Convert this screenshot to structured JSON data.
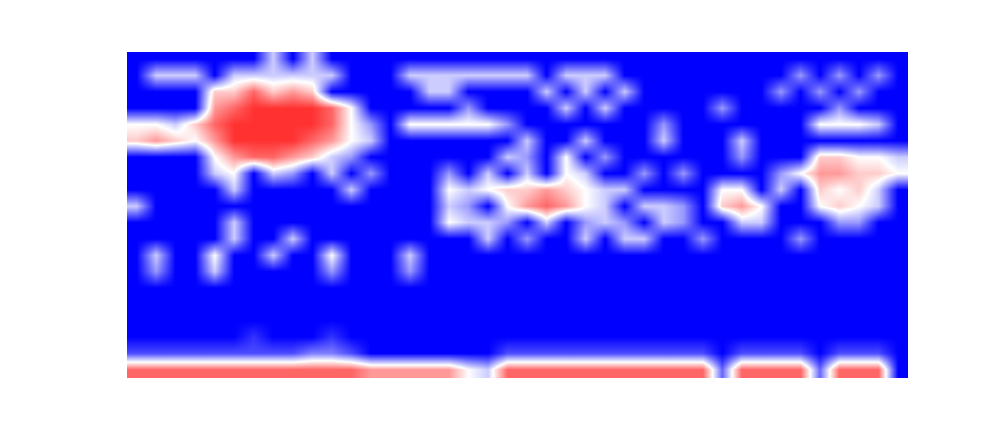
{
  "chart_data": {
    "type": "heatmap",
    "color": "bwr",
    "tick_labels": false,
    "value_range": [
      0,
      1
    ],
    "cells": [
      [
        0,
        0,
        0,
        0,
        0,
        0,
        0,
        0.4,
        0,
        0.4,
        0,
        0,
        0,
        0,
        0,
        0,
        0,
        0,
        0,
        0,
        0,
        0,
        0,
        0,
        0,
        0,
        0,
        0,
        0,
        0,
        0,
        0,
        0,
        0,
        0,
        0,
        0,
        0,
        0,
        0
      ],
      [
        0,
        0.4,
        0.4,
        0.4,
        0,
        0.4,
        0.4,
        0.4,
        0.4,
        0.4,
        0.4,
        0,
        0,
        0,
        0.4,
        0.4,
        0.4,
        0.4,
        0.4,
        0.4,
        0.4,
        0,
        0.4,
        0.4,
        0.4,
        0,
        0,
        0,
        0,
        0,
        0,
        0,
        0,
        0,
        0.3,
        0,
        0.3,
        0,
        0.3,
        0
      ],
      [
        0,
        0,
        0,
        0,
        0.6,
        0.6,
        0.8,
        0.6,
        0.7,
        0.6,
        0,
        0,
        0,
        0,
        0,
        0.4,
        0.4,
        0,
        0,
        0,
        0,
        0.4,
        0,
        0.4,
        0,
        0.4,
        0,
        0,
        0,
        0,
        0,
        0,
        0,
        0.3,
        0,
        0.3,
        0,
        0.3,
        0,
        0
      ],
      [
        0,
        0,
        0,
        0,
        0.7,
        0.8,
        0.9,
        0.9,
        0.9,
        0.9,
        0.8,
        0.5,
        0,
        0,
        0,
        0,
        0,
        0.3,
        0,
        0,
        0,
        0,
        0.4,
        0,
        0.4,
        0,
        0,
        0,
        0,
        0,
        0.3,
        0,
        0,
        0,
        0,
        0,
        0.3,
        0,
        0,
        0
      ],
      [
        0.5,
        0.5,
        0.4,
        0.6,
        0.8,
        0.9,
        0.9,
        0.9,
        0.9,
        0.9,
        0.8,
        0.5,
        0.3,
        0,
        0.5,
        0.5,
        0.5,
        0.5,
        0.5,
        0.3,
        0,
        0,
        0,
        0,
        0,
        0,
        0,
        0.3,
        0,
        0,
        0,
        0,
        0,
        0,
        0,
        0.5,
        0.5,
        0.5,
        0.4,
        0
      ],
      [
        0.6,
        0.7,
        0.6,
        0.5,
        0.7,
        0.9,
        0.9,
        0.9,
        0.9,
        0.8,
        0.7,
        0.5,
        0.4,
        0,
        0,
        0,
        0,
        0,
        0,
        0,
        0.4,
        0,
        0,
        0.4,
        0,
        0,
        0,
        0.4,
        0,
        0,
        0,
        0.4,
        0,
        0,
        0,
        0,
        0,
        0,
        0,
        0
      ],
      [
        0,
        0,
        0,
        0,
        0.5,
        0.7,
        0.8,
        0.8,
        0.7,
        0.6,
        0.4,
        0.3,
        0,
        0,
        0,
        0,
        0,
        0,
        0,
        0.4,
        0.3,
        0,
        0.5,
        0,
        0.3,
        0,
        0,
        0,
        0,
        0,
        0,
        0.3,
        0,
        0,
        0,
        0.6,
        0.6,
        0.5,
        0.5,
        0.4
      ],
      [
        0,
        0,
        0,
        0,
        0.4,
        0.5,
        0,
        0.4,
        0.3,
        0,
        0.4,
        0,
        0.3,
        0,
        0,
        0,
        0.3,
        0,
        0.4,
        0,
        0.4,
        0,
        0.5,
        0.4,
        0,
        0,
        0.3,
        0,
        0.3,
        0,
        0,
        0,
        0,
        0.3,
        0.5,
        0.7,
        0.7,
        0.6,
        0.6,
        0.5
      ],
      [
        0,
        0,
        0,
        0,
        0,
        0.4,
        0,
        0,
        0,
        0,
        0,
        0.4,
        0,
        0,
        0,
        0,
        0.5,
        0.4,
        0.5,
        0.6,
        0.6,
        0.7,
        0.6,
        0.5,
        0.4,
        0.4,
        0,
        0,
        0,
        0,
        0.5,
        0.5,
        0,
        0.4,
        0,
        0.6,
        0.5,
        0.6,
        0.4,
        0
      ],
      [
        0.4,
        0,
        0,
        0,
        0,
        0,
        0,
        0,
        0,
        0,
        0,
        0,
        0,
        0,
        0,
        0,
        0.4,
        0.3,
        0,
        0.5,
        0.7,
        0.8,
        0.7,
        0.5,
        0.4,
        0,
        0.4,
        0.4,
        0.3,
        0,
        0.6,
        0.7,
        0.5,
        0,
        0,
        0.5,
        0.6,
        0.5,
        0.4,
        0
      ],
      [
        0,
        0,
        0,
        0,
        0,
        0.4,
        0,
        0,
        0,
        0,
        0,
        0,
        0,
        0,
        0,
        0,
        0.5,
        0.4,
        0.4,
        0.3,
        0,
        0.4,
        0,
        0.3,
        0.4,
        0.3,
        0,
        0.4,
        0.3,
        0,
        0,
        0.4,
        0.4,
        0,
        0,
        0,
        0.3,
        0.3,
        0,
        0
      ],
      [
        0,
        0,
        0,
        0,
        0,
        0.4,
        0,
        0,
        0.4,
        0,
        0,
        0,
        0,
        0,
        0,
        0,
        0,
        0,
        0.4,
        0,
        0.3,
        0,
        0,
        0.4,
        0,
        0.4,
        0.4,
        0,
        0,
        0.3,
        0,
        0,
        0,
        0,
        0.3,
        0,
        0,
        0,
        0,
        0
      ],
      [
        0,
        0.4,
        0,
        0,
        0.5,
        0,
        0,
        0.4,
        0,
        0,
        0.5,
        0,
        0,
        0,
        0.4,
        0,
        0,
        0,
        0,
        0,
        0,
        0,
        0,
        0,
        0,
        0,
        0,
        0,
        0,
        0,
        0,
        0,
        0,
        0,
        0,
        0,
        0,
        0,
        0,
        0
      ],
      [
        0,
        0.3,
        0,
        0,
        0.4,
        0,
        0,
        0,
        0,
        0,
        0.3,
        0,
        0,
        0,
        0.3,
        0,
        0,
        0,
        0,
        0,
        0,
        0,
        0,
        0,
        0,
        0,
        0,
        0,
        0,
        0,
        0,
        0,
        0,
        0,
        0,
        0,
        0,
        0,
        0,
        0
      ],
      [
        0,
        0,
        0,
        0,
        0,
        0,
        0,
        0,
        0,
        0,
        0,
        0,
        0,
        0,
        0,
        0,
        0,
        0,
        0,
        0,
        0,
        0,
        0,
        0,
        0,
        0,
        0,
        0,
        0,
        0,
        0,
        0,
        0,
        0,
        0,
        0,
        0,
        0,
        0,
        0
      ],
      [
        0,
        0,
        0,
        0,
        0,
        0,
        0,
        0,
        0,
        0,
        0,
        0,
        0,
        0,
        0,
        0,
        0,
        0,
        0,
        0,
        0,
        0,
        0,
        0,
        0,
        0,
        0,
        0,
        0,
        0,
        0,
        0,
        0,
        0,
        0,
        0,
        0,
        0,
        0,
        0
      ],
      [
        0,
        0,
        0,
        0,
        0,
        0,
        0,
        0,
        0,
        0,
        0,
        0,
        0,
        0,
        0,
        0,
        0,
        0,
        0,
        0,
        0,
        0,
        0,
        0,
        0,
        0,
        0,
        0,
        0,
        0,
        0,
        0,
        0,
        0,
        0,
        0,
        0,
        0,
        0,
        0
      ],
      [
        0,
        0,
        0,
        0,
        0,
        0,
        0.1,
        0,
        0,
        0,
        0.1,
        0,
        0,
        0,
        0,
        0,
        0,
        0,
        0,
        0,
        0,
        0,
        0,
        0,
        0,
        0,
        0,
        0,
        0,
        0,
        0,
        0,
        0,
        0,
        0,
        0,
        0,
        0,
        0,
        0
      ],
      [
        0.15,
        0.15,
        0.15,
        0.15,
        0.15,
        0.15,
        0.15,
        0.15,
        0.15,
        0.25,
        0.25,
        0.15,
        0,
        0,
        0,
        0,
        0,
        0,
        0,
        0.15,
        0.15,
        0.15,
        0.15,
        0.15,
        0.15,
        0.15,
        0.15,
        0.15,
        0.15,
        0.15,
        0,
        0.15,
        0.15,
        0.15,
        0.15,
        0,
        0.15,
        0.15,
        0.15,
        0
      ],
      [
        0.8,
        0.8,
        0.8,
        0.8,
        0.8,
        0.8,
        0.8,
        0.8,
        0.8,
        0.8,
        0.8,
        0.8,
        0.7,
        0.7,
        0.7,
        0.7,
        0.7,
        0.5,
        0.4,
        0.8,
        0.8,
        0.8,
        0.8,
        0.8,
        0.8,
        0.8,
        0.8,
        0.8,
        0.8,
        0.8,
        0.2,
        0.8,
        0.8,
        0.8,
        0.8,
        0.2,
        0.8,
        0.8,
        0.8,
        0
      ]
    ]
  }
}
